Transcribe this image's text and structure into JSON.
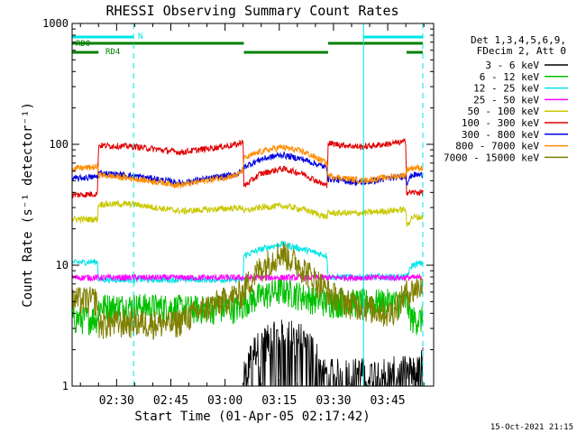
{
  "chart_data": {
    "type": "line",
    "title": "RHESSI Observing Summary Count Rates",
    "xlabel": "Start Time (01-Apr-05 02:17:42)",
    "ylabel": "Count Rate (s⁻¹ detector⁻¹)",
    "yscale": "log",
    "ylim": [
      1,
      1000
    ],
    "xlim_minutes_from_start": [
      0,
      100
    ],
    "y_ticks": [
      "1",
      "10",
      "100",
      "1000"
    ],
    "x_ticks": [
      {
        "label": "02:30",
        "minute": 12.3
      },
      {
        "label": "02:45",
        "minute": 27.3
      },
      {
        "label": "03:00",
        "minute": 42.3
      },
      {
        "label": "03:15",
        "minute": 57.3
      },
      {
        "label": "03:30",
        "minute": 72.3
      },
      {
        "label": "03:45",
        "minute": 87.3
      }
    ],
    "legend_header": [
      "Det 1,3,4,5,6,9,",
      "FDecim 2, Att 0"
    ],
    "legend_placement": "right",
    "timestamp": "15-Oct-2021 21:15",
    "flags": [
      {
        "label": "N",
        "color": "#00e5e5",
        "segments": [
          [
            0,
            17
          ],
          [
            80.6,
            97
          ]
        ]
      },
      {
        "label": "RD0",
        "color": "#008000",
        "segments": [
          [
            0,
            47.5
          ],
          [
            70.8,
            97
          ]
        ]
      },
      {
        "label": "RD4",
        "color": "#008000",
        "segments": [
          [
            0,
            7.3
          ],
          [
            47.5,
            70.8
          ],
          [
            92.5,
            97
          ]
        ]
      }
    ],
    "gaps_minutes": [
      [
        0,
        7.3
      ],
      [
        47.5,
        70.8
      ],
      [
        92.5,
        100
      ]
    ],
    "vlines_solid_minutes": [
      0,
      80.6
    ],
    "vlines_dashed_minutes": [
      17,
      97
    ],
    "series": [
      {
        "name": "3 - 6 keV",
        "color": "#000000",
        "mode": "spiky",
        "x": [
          47.5,
          50,
          55,
          58,
          62,
          66,
          70,
          96,
          97
        ],
        "y": [
          1.3,
          2.2,
          2.8,
          3.0,
          2.9,
          2.5,
          1.4,
          1.5,
          2
        ]
      },
      {
        "name": "6 - 12 keV",
        "color": "#00c000",
        "mode": "noisy",
        "x": [
          0,
          7,
          7.3,
          20,
          35,
          47,
          47.5,
          52,
          58,
          64,
          70.5,
          70.8,
          85,
          92.5,
          94,
          97
        ],
        "y": [
          3.6,
          3.7,
          4.6,
          4.6,
          4.4,
          4.5,
          5.0,
          5.6,
          6.3,
          5.6,
          5.0,
          5.0,
          5.0,
          5.0,
          3.6,
          3.6
        ]
      },
      {
        "name": "12 - 25 keV",
        "color": "#00e5e5",
        "mode": "smooth",
        "x": [
          0,
          7,
          7.3,
          47.3,
          47.5,
          52,
          58,
          64,
          70.5,
          70.8,
          92.3,
          92.5,
          94,
          97
        ],
        "y": [
          10.5,
          10.7,
          7.6,
          7.6,
          12.0,
          13.5,
          15.0,
          13.5,
          12.0,
          8.0,
          8.0,
          8.0,
          10.0,
          10.5
        ]
      },
      {
        "name": "25 - 50 keV",
        "color": "#ff00ff",
        "mode": "smooth",
        "x": [
          0,
          47,
          58,
          70,
          97
        ],
        "y": [
          7.9,
          7.9,
          7.9,
          7.9,
          7.9
        ]
      },
      {
        "name": "50 - 100 keV",
        "color": "#c8c800",
        "mode": "smooth",
        "x": [
          0,
          7,
          7.3,
          17,
          30,
          47.3,
          47.5,
          52,
          58,
          64,
          70.5,
          70.8,
          80,
          92.3,
          92.5,
          94,
          97
        ],
        "y": [
          24,
          24,
          32,
          32,
          28,
          30,
          28,
          30,
          31,
          29,
          25,
          27,
          27,
          29,
          21,
          25,
          25
        ]
      },
      {
        "name": "100 - 300 keV",
        "color": "#e00000",
        "mode": "smooth",
        "x": [
          0,
          7,
          7.3,
          17,
          30,
          46,
          47.3,
          47.5,
          52,
          58,
          64,
          70.5,
          70.8,
          80,
          92.3,
          92.5,
          94,
          97
        ],
        "y": [
          38,
          39,
          98,
          96,
          86,
          100,
          108,
          45,
          57,
          63,
          57,
          45,
          102,
          95,
          105,
          40,
          40,
          40
        ]
      },
      {
        "name": "300 - 800 keV",
        "color": "#0000e0",
        "mode": "smooth",
        "x": [
          0,
          7,
          7.3,
          17,
          30,
          46,
          47.3,
          47.5,
          52,
          58,
          64,
          70.5,
          70.8,
          80,
          92.3,
          92.5,
          94,
          97
        ],
        "y": [
          52,
          54,
          58,
          55,
          48,
          57,
          62,
          65,
          75,
          82,
          75,
          64,
          52,
          48,
          55,
          48,
          56,
          56
        ]
      },
      {
        "name": "800 - 7000 keV",
        "color": "#ff8c00",
        "mode": "smooth",
        "x": [
          0,
          7,
          7.3,
          17,
          30,
          46,
          47.3,
          47.5,
          52,
          58,
          64,
          70.5,
          70.8,
          80,
          92.3,
          92.5,
          94,
          97
        ],
        "y": [
          63,
          65,
          56,
          52,
          46,
          56,
          62,
          76,
          87,
          95,
          87,
          70,
          55,
          50,
          56,
          62,
          64,
          64
        ]
      },
      {
        "name": "7000 - 15000 keV",
        "color": "#7f7f00",
        "mode": "noisy",
        "x": [
          0,
          7,
          7.3,
          17,
          28,
          37,
          47.3,
          47.5,
          52,
          58,
          64,
          70.5,
          70.8,
          76,
          82,
          88,
          92.5,
          94,
          97
        ],
        "y": [
          5.2,
          5.2,
          3.3,
          3.4,
          3.3,
          4.5,
          6.0,
          6.5,
          9.5,
          13.0,
          9.5,
          6.2,
          6.0,
          5.0,
          4.5,
          4.0,
          6.0,
          6.2,
          7
        ]
      }
    ]
  }
}
